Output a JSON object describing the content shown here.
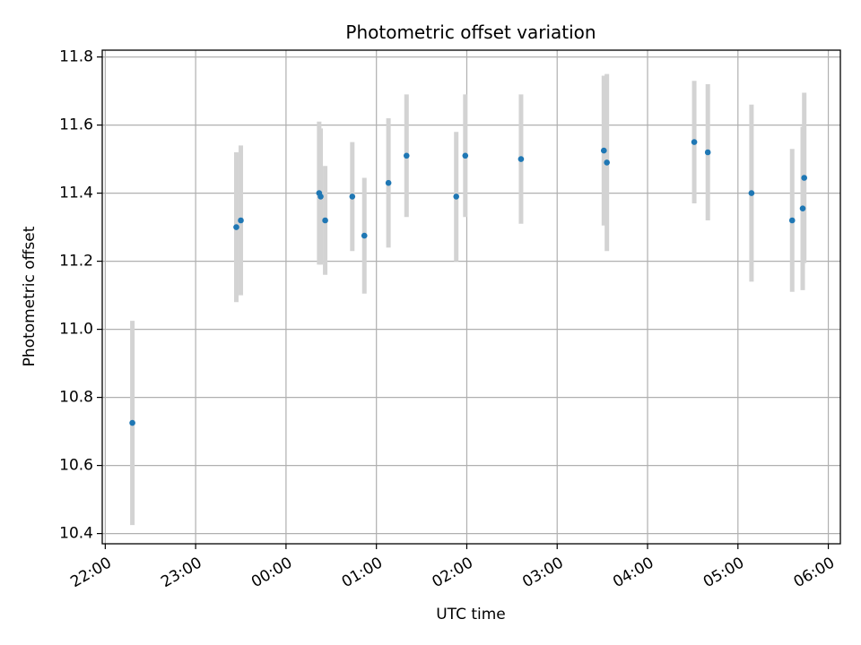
{
  "chart_data": {
    "type": "scatter",
    "title": "Photometric offset variation",
    "xlabel": "UTC time",
    "ylabel": "Photometric offset",
    "xlim": [
      "21:58",
      "06:08"
    ],
    "ylim": [
      10.37,
      11.82
    ],
    "x_ticks": [
      "22:00",
      "23:00",
      "00:00",
      "01:00",
      "02:00",
      "03:00",
      "04:00",
      "05:00",
      "06:00"
    ],
    "y_ticks": [
      "10.4",
      "10.6",
      "10.8",
      "11.0",
      "11.2",
      "11.4",
      "11.6",
      "11.8"
    ],
    "grid": true,
    "colors": {
      "point": "#1f77b4",
      "errorbar": "#d3d3d3",
      "grid": "#b0b0b0"
    },
    "series": [
      {
        "points": [
          {
            "x": "22:18",
            "y": 10.725,
            "yerr": 0.3
          },
          {
            "x": "23:27",
            "y": 11.3,
            "yerr": 0.22
          },
          {
            "x": "23:30",
            "y": 11.32,
            "yerr": 0.22
          },
          {
            "x": "00:22",
            "y": 11.4,
            "yerr": 0.21
          },
          {
            "x": "00:23",
            "y": 11.39,
            "yerr": 0.2
          },
          {
            "x": "00:26",
            "y": 11.32,
            "yerr": 0.16
          },
          {
            "x": "00:44",
            "y": 11.39,
            "yerr": 0.16
          },
          {
            "x": "00:52",
            "y": 11.275,
            "yerr": 0.17
          },
          {
            "x": "01:08",
            "y": 11.43,
            "yerr": 0.19
          },
          {
            "x": "01:20",
            "y": 11.51,
            "yerr": 0.18
          },
          {
            "x": "01:53",
            "y": 11.39,
            "yerr": 0.19
          },
          {
            "x": "01:59",
            "y": 11.51,
            "yerr": 0.18
          },
          {
            "x": "02:36",
            "y": 11.5,
            "yerr": 0.19
          },
          {
            "x": "03:31",
            "y": 11.525,
            "yerr": 0.22
          },
          {
            "x": "03:33",
            "y": 11.49,
            "yerr": 0.26
          },
          {
            "x": "04:31",
            "y": 11.55,
            "yerr": 0.18
          },
          {
            "x": "04:40",
            "y": 11.52,
            "yerr": 0.2
          },
          {
            "x": "05:09",
            "y": 11.4,
            "yerr": 0.26
          },
          {
            "x": "05:36",
            "y": 11.32,
            "yerr": 0.21
          },
          {
            "x": "05:43",
            "y": 11.355,
            "yerr": 0.24
          },
          {
            "x": "05:44",
            "y": 11.445,
            "yerr": 0.25
          }
        ]
      }
    ]
  }
}
